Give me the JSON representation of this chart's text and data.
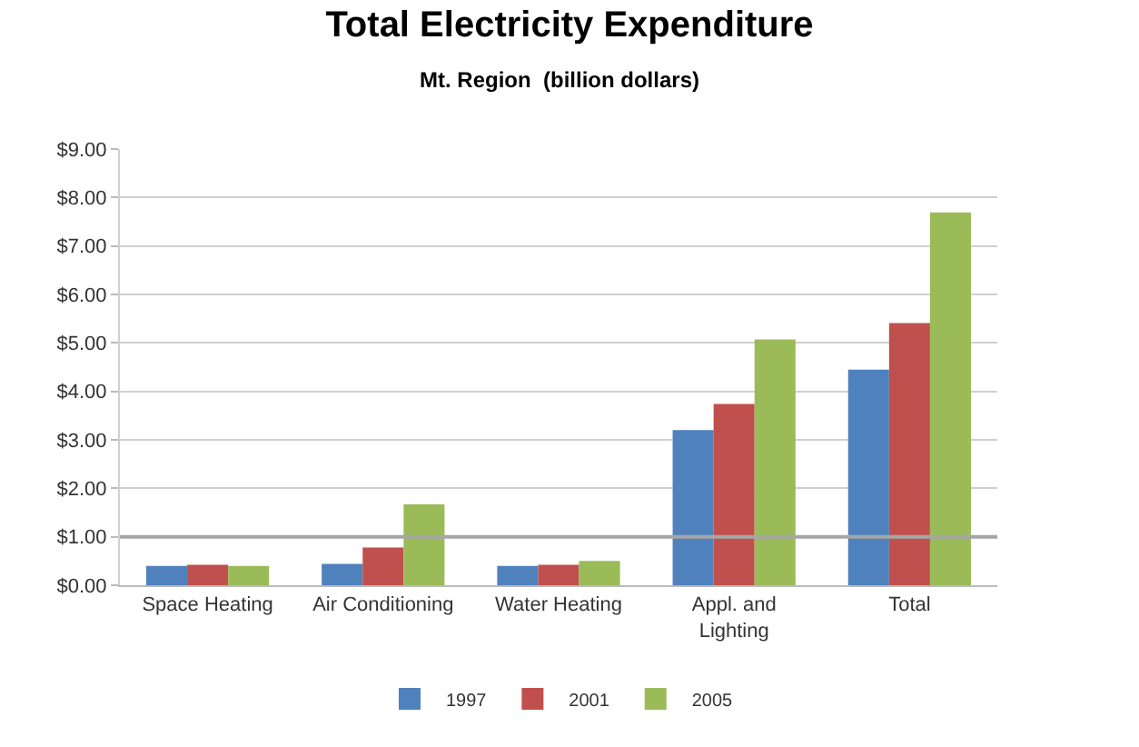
{
  "chart_data": {
    "type": "bar",
    "title": "Total Electricity Expenditure",
    "subtitle": "Mt. Region  (billion dollars)",
    "categories": [
      "Space Heating",
      "Air Conditioning",
      "Water Heating",
      "Appl. and Lighting",
      "Total"
    ],
    "series": [
      {
        "name": "1997",
        "color": "#4f81bd",
        "values": [
          0.4,
          0.44,
          0.4,
          3.2,
          4.45
        ]
      },
      {
        "name": "2001",
        "color": "#c0504d",
        "values": [
          0.42,
          0.78,
          0.42,
          3.74,
          5.41
        ]
      },
      {
        "name": "2005",
        "color": "#9bbb59",
        "values": [
          0.4,
          1.67,
          0.5,
          5.07,
          7.69
        ]
      }
    ],
    "ylim": [
      0,
      9
    ],
    "yticks": [
      {
        "value": 0,
        "label": "$0.00"
      },
      {
        "value": 1,
        "label": "$1.00"
      },
      {
        "value": 2,
        "label": "$2.00"
      },
      {
        "value": 3,
        "label": "$3.00"
      },
      {
        "value": 4,
        "label": "$4.00"
      },
      {
        "value": 5,
        "label": "$5.00"
      },
      {
        "value": 6,
        "label": "$6.00"
      },
      {
        "value": 7,
        "label": "$7.00"
      },
      {
        "value": 8,
        "label": "$8.00"
      },
      {
        "value": 9,
        "label": "$9.00"
      }
    ],
    "ref_lines": [
      {
        "axis": "y",
        "value": 1,
        "color": "#a6a6a6"
      }
    ],
    "grid": "y",
    "legend": "bottom"
  }
}
